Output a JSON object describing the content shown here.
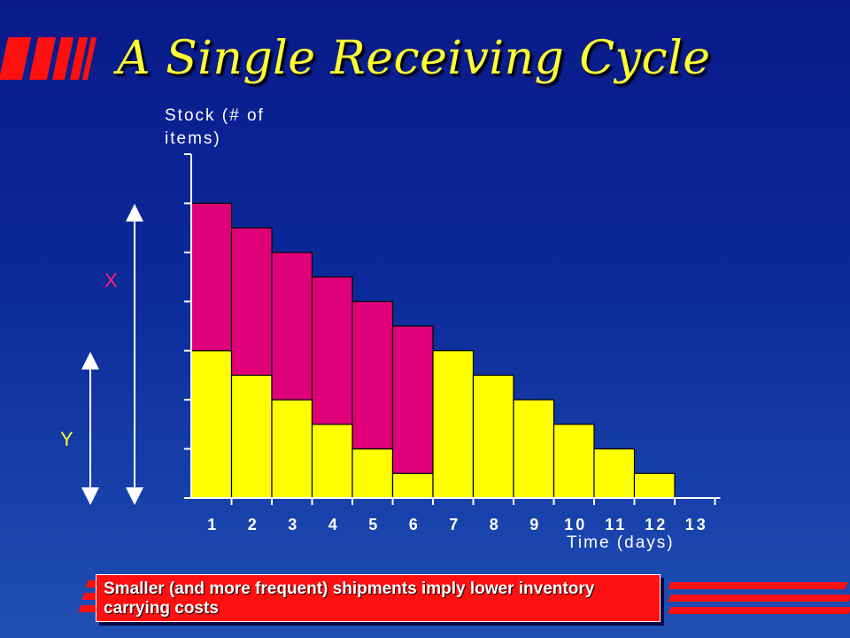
{
  "slide": {
    "title": "A Single Receiving Cycle",
    "note": "Smaller (and more frequent) shipments imply lower inventory carrying costs",
    "colors": {
      "background": "#0c2a9a",
      "title": "#ffff33",
      "accent_red": "#ff1010"
    }
  },
  "chart_data": {
    "type": "bar",
    "stacked": true,
    "categories": [
      "1",
      "2",
      "3",
      "4",
      "5",
      "6",
      "7",
      "8",
      "9",
      "10",
      "11",
      "12",
      "13"
    ],
    "series": [
      {
        "name": "",
        "color": "#ffff00",
        "values": [
          6,
          5,
          4,
          3,
          2,
          1,
          6,
          5,
          4,
          3,
          2,
          1,
          0
        ]
      },
      {
        "name": "",
        "color": "#e0007a",
        "values": [
          6,
          6,
          6,
          6,
          6,
          6,
          0,
          0,
          0,
          0,
          0,
          0,
          0
        ]
      }
    ],
    "ylim": [
      0,
      14
    ],
    "ylabel": "Stock (# of items)",
    "xlabel": "Time (days)",
    "grid": false,
    "annotations": {
      "range_x_label": "X",
      "range_y_label": "Y"
    }
  }
}
